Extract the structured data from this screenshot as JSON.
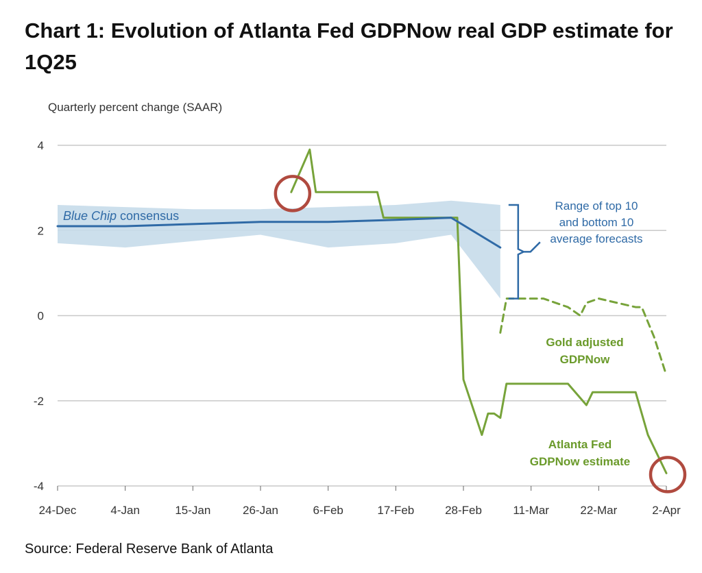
{
  "title": "Chart 1: Evolution of Atlanta Fed GDPNow real GDP estimate for 1Q25",
  "source": "Source: Federal Reserve Bank of Atlanta",
  "colors": {
    "gdpnow": "#77a33a",
    "consensus": "#2f6aa6",
    "band": "#c7dbea",
    "marker": "#b04a3f",
    "grid": "#c8c8c8"
  },
  "chart_data": {
    "type": "line",
    "ylabel": "Quarterly percent change (SAAR)",
    "ylim": [
      -4,
      4
    ],
    "yticks": [
      4,
      2,
      0,
      -2,
      -4
    ],
    "xlim": [
      "2024-12-24",
      "2025-04-02"
    ],
    "xticks": [
      "24-Dec",
      "4-Jan",
      "15-Jan",
      "26-Jan",
      "6-Feb",
      "17-Feb",
      "28-Feb",
      "11-Mar",
      "22-Mar",
      "2-Apr"
    ],
    "grid": true,
    "series": [
      {
        "name": "Atlanta Fed GDPNow estimate",
        "style": "solid",
        "points": [
          [
            "2025-01-31",
            2.9
          ],
          [
            "2025-02-03",
            3.9
          ],
          [
            "2025-02-04",
            2.9
          ],
          [
            "2025-02-07",
            2.9
          ],
          [
            "2025-02-14",
            2.9
          ],
          [
            "2025-02-15",
            2.3
          ],
          [
            "2025-02-26",
            2.3
          ],
          [
            "2025-02-27",
            2.3
          ],
          [
            "2025-02-28",
            -1.5
          ],
          [
            "2025-03-03",
            -2.8
          ],
          [
            "2025-03-04",
            -2.3
          ],
          [
            "2025-03-05",
            -2.3
          ],
          [
            "2025-03-06",
            -2.4
          ],
          [
            "2025-03-07",
            -1.6
          ],
          [
            "2025-03-17",
            -1.6
          ],
          [
            "2025-03-20",
            -2.1
          ],
          [
            "2025-03-21",
            -1.8
          ],
          [
            "2025-03-28",
            -1.8
          ],
          [
            "2025-03-30",
            -2.8
          ],
          [
            "2025-04-02",
            -3.7
          ]
        ]
      },
      {
        "name": "Gold adjusted GDPNow",
        "style": "dashed",
        "points": [
          [
            "2025-03-06",
            -0.4
          ],
          [
            "2025-03-07",
            0.4
          ],
          [
            "2025-03-13",
            0.4
          ],
          [
            "2025-03-17",
            0.2
          ],
          [
            "2025-03-19",
            0.0
          ],
          [
            "2025-03-20",
            0.3
          ],
          [
            "2025-03-22",
            0.4
          ],
          [
            "2025-03-28",
            0.2
          ],
          [
            "2025-03-29",
            0.2
          ],
          [
            "2025-03-31",
            -0.5
          ],
          [
            "2025-04-02",
            -1.4
          ]
        ]
      },
      {
        "name": "Blue Chip consensus",
        "style": "solid",
        "points": [
          [
            "2024-12-24",
            2.1
          ],
          [
            "2025-01-04",
            2.1
          ],
          [
            "2025-01-15",
            2.15
          ],
          [
            "2025-01-26",
            2.2
          ],
          [
            "2025-02-06",
            2.2
          ],
          [
            "2025-02-17",
            2.25
          ],
          [
            "2025-02-26",
            2.3
          ],
          [
            "2025-03-06",
            1.6
          ]
        ]
      }
    ],
    "band": {
      "name": "Range of top 10 and bottom 10 average forecasts",
      "dates": [
        "2024-12-24",
        "2025-01-04",
        "2025-01-15",
        "2025-01-26",
        "2025-02-06",
        "2025-02-17",
        "2025-02-26",
        "2025-03-06"
      ],
      "upper": [
        2.6,
        2.55,
        2.5,
        2.5,
        2.55,
        2.6,
        2.7,
        2.6
      ],
      "lower": [
        1.7,
        1.6,
        1.75,
        1.9,
        1.6,
        1.7,
        1.9,
        0.4
      ]
    },
    "markers": [
      [
        "2025-01-31",
        2.9
      ],
      [
        "2025-04-02",
        -3.7
      ]
    ],
    "annotations": {
      "consensus_label_italic": "Blue Chip",
      "consensus_label_rest": " consensus",
      "range_line1": "Range of top 10",
      "range_line2": "and bottom 10",
      "range_line3": "average forecasts",
      "gold_line1": "Gold adjusted",
      "gold_line2": "GDPNow",
      "atl_line1": "Atlanta Fed",
      "atl_line2": "GDPNow estimate"
    }
  }
}
